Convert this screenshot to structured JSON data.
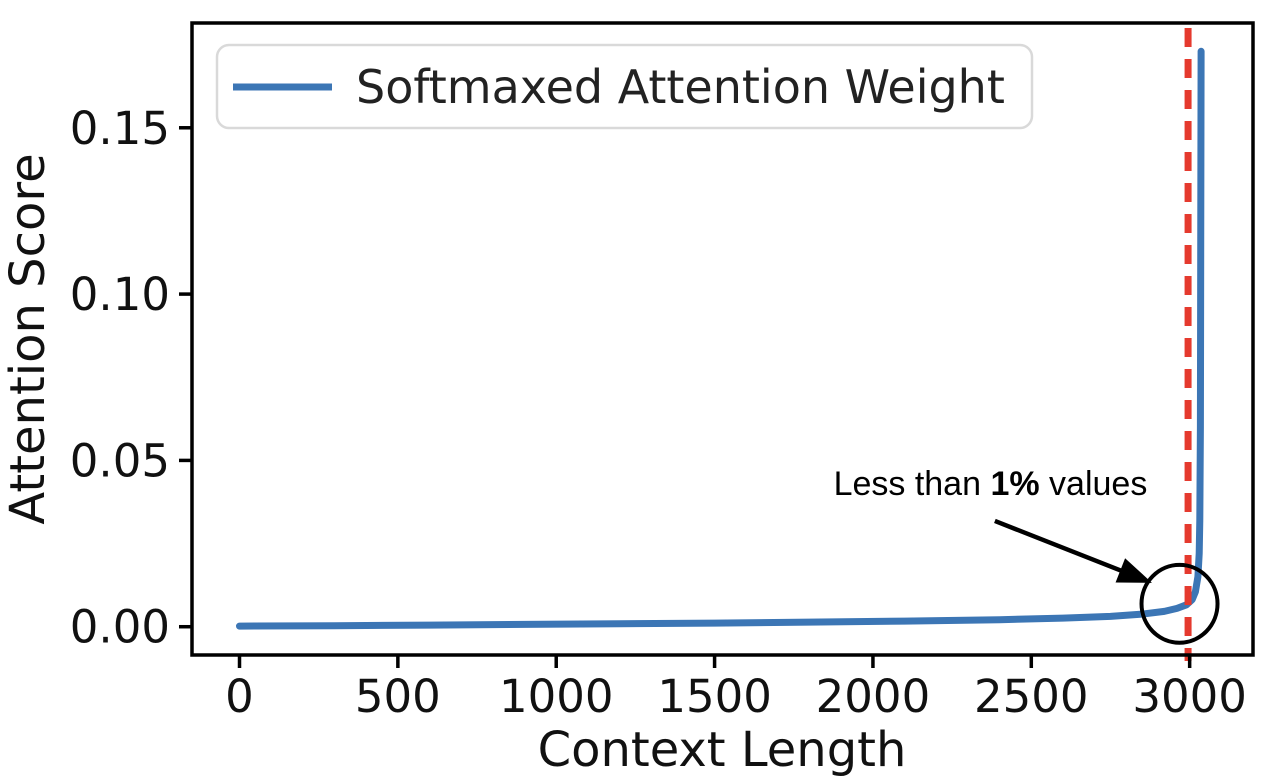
{
  "chart_data": {
    "type": "line",
    "title": "",
    "xlabel": "Context Length",
    "ylabel": "Attention Score",
    "xlim": [
      -150,
      3200
    ],
    "ylim": [
      -0.0085,
      0.1815
    ],
    "xticks": [
      0,
      500,
      1000,
      1500,
      2000,
      2500,
      3000
    ],
    "yticks": [
      0,
      0.05,
      0.1,
      0.15
    ],
    "ytick_labels": [
      "0.00",
      "0.05",
      "0.10",
      "0.15"
    ],
    "grid": false,
    "legend": {
      "position": "upper left",
      "entries": [
        {
          "label": "Softmaxed Attention Weight",
          "color": "#3c76b5"
        }
      ]
    },
    "series": [
      {
        "name": "Softmaxed Attention Weight",
        "color": "#3c76b5",
        "width": 7,
        "points": [
          [
            0,
            0.0002
          ],
          [
            300,
            0.0003
          ],
          [
            600,
            0.0005
          ],
          [
            900,
            0.0007
          ],
          [
            1200,
            0.0009
          ],
          [
            1500,
            0.0011
          ],
          [
            1800,
            0.0014
          ],
          [
            2100,
            0.0017
          ],
          [
            2400,
            0.0021
          ],
          [
            2600,
            0.0026
          ],
          [
            2750,
            0.0031
          ],
          [
            2850,
            0.0038
          ],
          [
            2920,
            0.0046
          ],
          [
            2960,
            0.0055
          ],
          [
            2990,
            0.0066
          ],
          [
            3008,
            0.0082
          ],
          [
            3018,
            0.0105
          ],
          [
            3026,
            0.015
          ],
          [
            3030,
            0.022
          ],
          [
            3032,
            0.032
          ],
          [
            3034,
            0.06
          ],
          [
            3035,
            0.11
          ],
          [
            3036,
            0.173
          ]
        ]
      }
    ],
    "vline": {
      "x": 2995,
      "color": "#e53a2e",
      "width": 7,
      "dash": [
        19,
        12
      ]
    },
    "annotation": {
      "text_prefix": "Less than ",
      "text_bold": "1%",
      "text_suffix": " values",
      "text_x": 2341,
      "text_y": 0.0432,
      "arrow_from": [
        2385,
        0.0318
      ],
      "arrow_to": [
        2881,
        0.0132
      ],
      "circle_cx": 2968,
      "circle_cy": 0.0069,
      "circle_rx": 120,
      "circle_ry": 0.0117,
      "color": "#000000"
    },
    "frame_color": "#000000",
    "text_color": "#111111"
  }
}
